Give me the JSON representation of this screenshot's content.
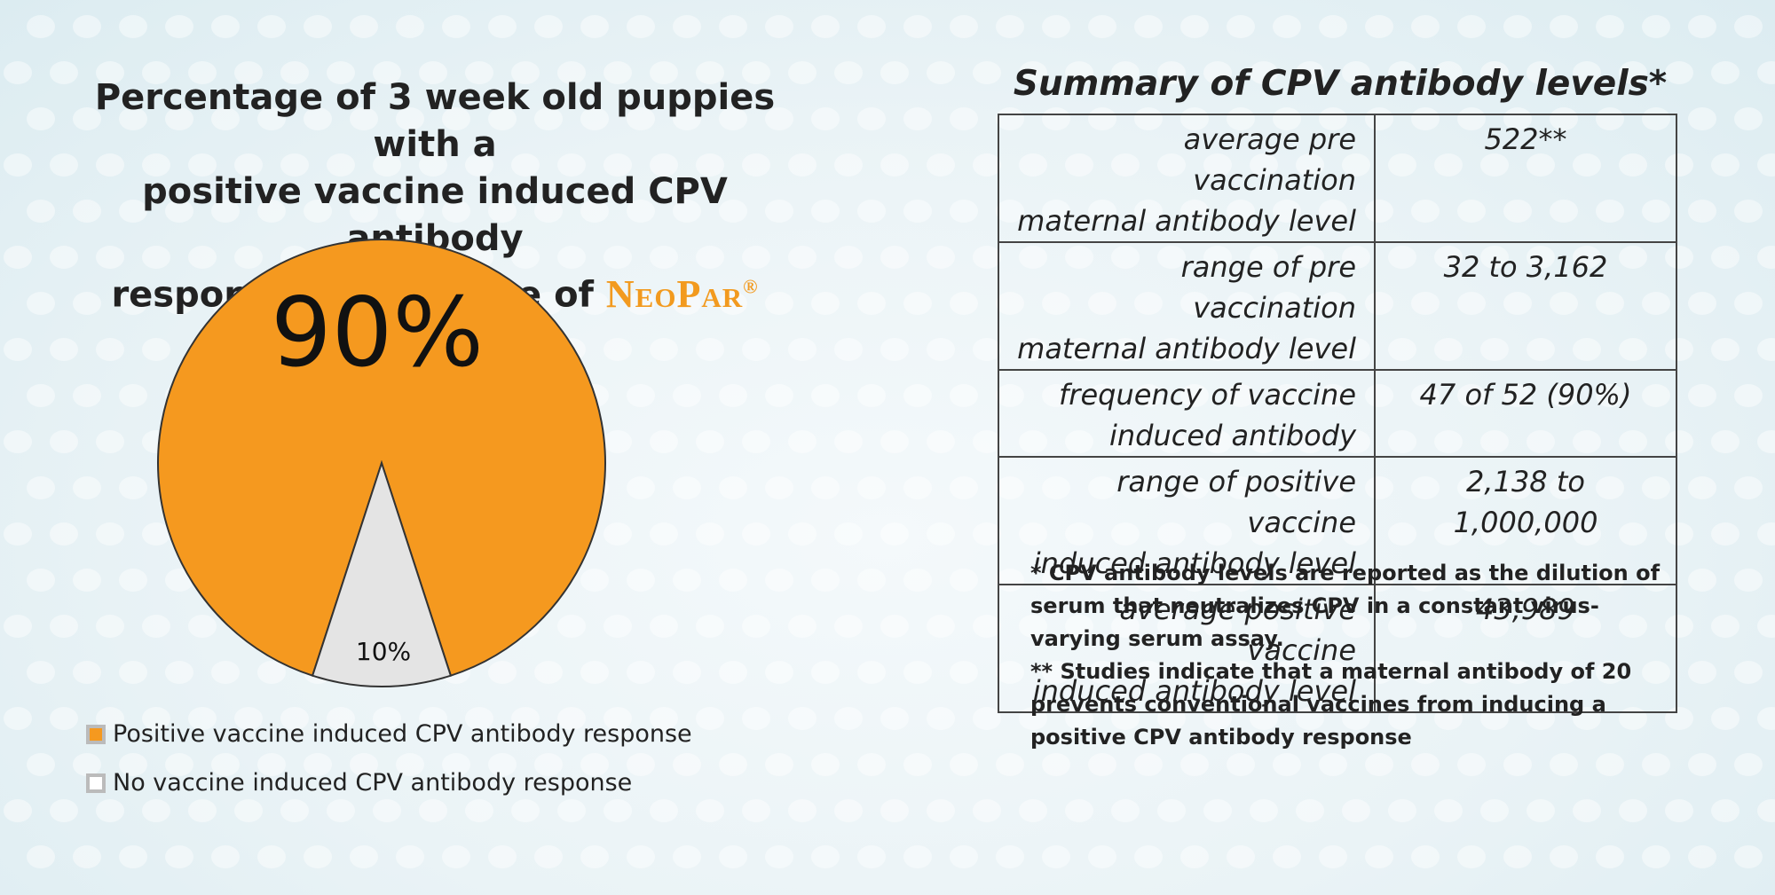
{
  "chart_data": {
    "type": "pie",
    "title": "Percentage of 3 week old puppies with a positive vaccine induced CPV antibody response to one dose of",
    "title_line1": "Percentage of 3 week old puppies with a",
    "title_line2": "positive vaccine induced CPV antibody",
    "title_line3": "response to one dose of",
    "brand": "NeoPar",
    "brand_mark": "®",
    "slices": [
      {
        "label": "Positive vaccine induced CPV antibody response",
        "value": 90,
        "display": "90%",
        "color": "#f5991f"
      },
      {
        "label": "No vaccine induced CPV antibody response",
        "value": 10,
        "display": "10%",
        "color": "#e4e4e4"
      }
    ],
    "legend_position": "bottom-left"
  },
  "summary": {
    "title": "Summary of CPV antibody levels*",
    "rows": [
      {
        "label_1": "average pre vaccination",
        "label_2": "maternal antibody level",
        "value": "522**"
      },
      {
        "label_1": "range of pre vaccination",
        "label_2": "maternal antibody level",
        "value": "32 to 3,162"
      },
      {
        "label_1": "frequency of vaccine",
        "label_2": "induced antibody",
        "value": "47 of 52 (90%)"
      },
      {
        "label_1": "range of positive vaccine",
        "label_2": "induced antibody level",
        "value": "2,138 to 1,000,000"
      },
      {
        "label_1": "average positive vaccine",
        "label_2": "induced antibody level",
        "value": "43,989"
      }
    ]
  },
  "footnotes": [
    "* CPV antibody levels are reported as the dilution of serum  that neutralizes CPV in a constant virus-varying serum assay.",
    "** Studies indicate that a maternal antibody of 20 prevents conventional vaccines from inducing a positive CPV antibody response"
  ]
}
